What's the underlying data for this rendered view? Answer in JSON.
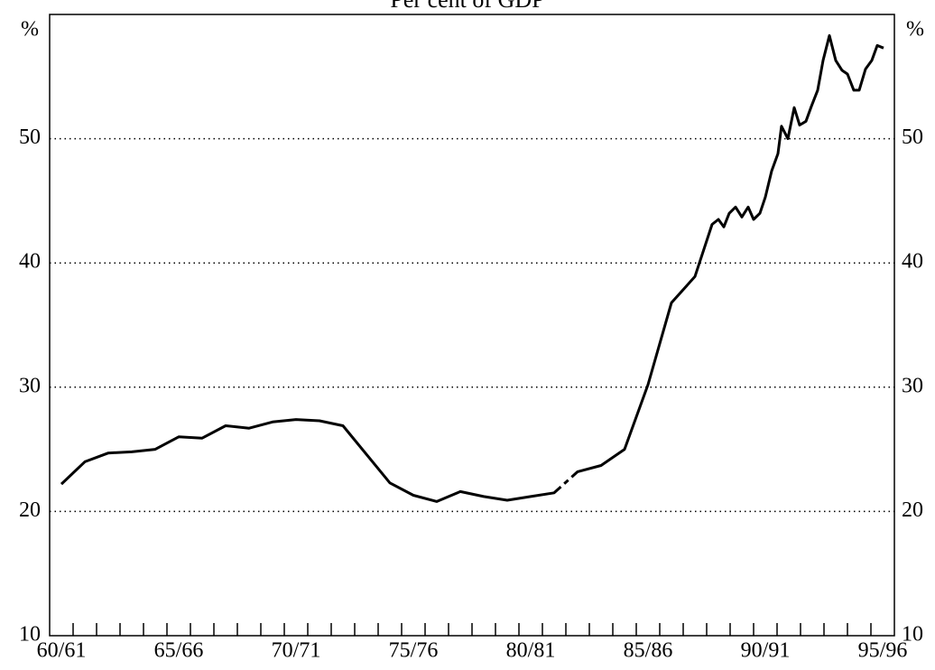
{
  "chart_data": {
    "type": "line",
    "title": "Per cent of GDP",
    "y_unit_left": "%",
    "y_unit_right": "%",
    "x": [
      1960.5,
      1961.5,
      1962.5,
      1963.5,
      1964.5,
      1965.5,
      1966.5,
      1967.5,
      1968.5,
      1969.5,
      1970.5,
      1971.5,
      1972.5,
      1974.5,
      1975.5,
      1976.5,
      1977.5,
      1978.5,
      1979.5,
      1980.5,
      1981.5,
      1982.5,
      1983.5,
      1984.5,
      1985.5,
      1986.5,
      1987.5,
      1988.23,
      1988.5,
      1988.73,
      1988.96,
      1989.23,
      1989.5,
      1989.77,
      1990.0,
      1990.27,
      1990.5,
      1990.77,
      1991.04,
      1991.19,
      1991.46,
      1991.73,
      1991.96,
      1992.23,
      1992.46,
      1992.73,
      1992.96,
      1993.23,
      1993.5,
      1993.77,
      1994.0,
      1994.27,
      1994.5,
      1994.77,
      1995.04,
      1995.27,
      1995.54
    ],
    "series": [
      {
        "color": "#000000",
        "values": [
          22.2,
          24.0,
          24.7,
          24.8,
          25.0,
          26.0,
          25.9,
          26.9,
          26.7,
          27.2,
          27.4,
          27.3,
          26.9,
          22.3,
          21.3,
          20.8,
          21.6,
          21.2,
          20.9,
          21.2,
          21.5,
          23.2,
          23.7,
          25.0,
          30.2,
          36.8,
          38.9,
          43.1,
          43.5,
          42.9,
          44.0,
          44.5,
          43.7,
          44.5,
          43.5,
          44.0,
          45.3,
          47.4,
          48.8,
          51.0,
          50.0,
          52.5,
          51.1,
          51.4,
          52.6,
          53.9,
          56.3,
          58.3,
          56.3,
          55.5,
          55.2,
          53.9,
          53.9,
          55.6,
          56.3,
          57.5,
          57.3
        ],
        "dashed_segments": [
          [
            20,
            21
          ]
        ]
      }
    ],
    "xlim": [
      1960,
      1996
    ],
    "xticks": [
      {
        "value": 1960.5,
        "label": "60/61"
      },
      {
        "value": 1965.5,
        "label": "65/66"
      },
      {
        "value": 1970.5,
        "label": "70/71"
      },
      {
        "value": 1975.5,
        "label": "75/76"
      },
      {
        "value": 1980.5,
        "label": "80/81"
      },
      {
        "value": 1985.5,
        "label": "85/86"
      },
      {
        "value": 1990.5,
        "label": "90/91"
      },
      {
        "value": 1995.5,
        "label": "95/96"
      }
    ],
    "minor_xticks": [
      1961,
      1962,
      1963,
      1964,
      1965,
      1966,
      1967,
      1968,
      1969,
      1970,
      1971,
      1972,
      1973,
      1974,
      1975,
      1976,
      1977,
      1978,
      1979,
      1980,
      1981,
      1982,
      1983,
      1984,
      1985,
      1986,
      1987,
      1988,
      1989,
      1990,
      1991,
      1992,
      1993,
      1994,
      1995
    ],
    "ylim": [
      10,
      60
    ],
    "yticks": [
      10,
      20,
      30,
      40,
      50
    ],
    "grid": true,
    "grid_style": "dotted"
  }
}
